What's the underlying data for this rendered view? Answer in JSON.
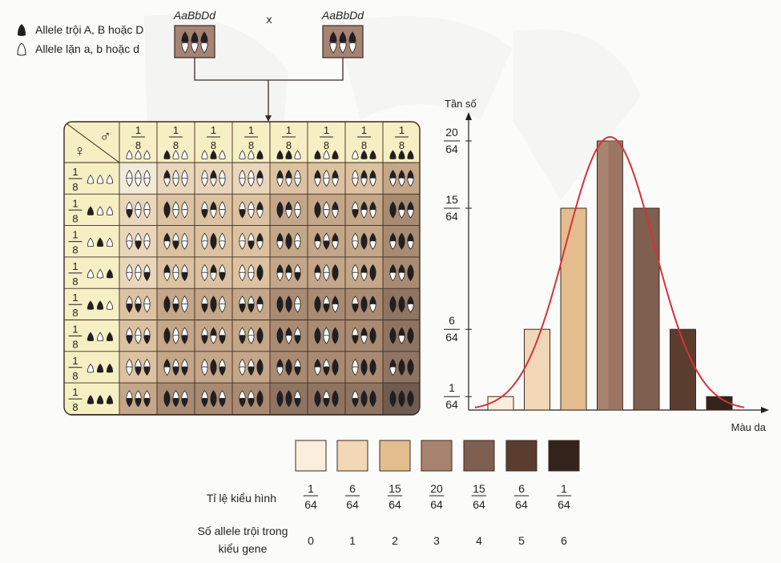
{
  "legend": {
    "dominant": "Allele trội A, B hoặc D",
    "recessive": "Allele lặn a, b hoặc d"
  },
  "cross": {
    "parent1": "AaBbDd",
    "operator": "x",
    "parent2": "AaBbDd"
  },
  "punnett": {
    "female_symbol": "♀",
    "male_symbol": "♂",
    "fraction_num": "1",
    "fraction_den": "8",
    "gamete_codes": [
      "000",
      "100",
      "010",
      "001",
      "110",
      "101",
      "011",
      "111"
    ],
    "column_gametes": [
      "000",
      "100",
      "010",
      "001",
      "110",
      "101",
      "011",
      "111"
    ],
    "row_gametes": [
      "000",
      "100",
      "010",
      "001",
      "110",
      "101",
      "011",
      "111"
    ]
  },
  "chart_data": {
    "type": "bar",
    "ylabel": "Tần số",
    "xlabel": "Màu da",
    "y_ticks": [
      {
        "num": "1",
        "den": "64",
        "value": 1
      },
      {
        "num": "6",
        "den": "64",
        "value": 6
      },
      {
        "num": "15",
        "den": "64",
        "value": 15
      },
      {
        "num": "20",
        "den": "64",
        "value": 20
      }
    ],
    "categories": [
      "0",
      "1",
      "2",
      "3",
      "4",
      "5",
      "6"
    ],
    "values": [
      1,
      6,
      15,
      20,
      15,
      6,
      1
    ],
    "bar_colors": [
      "#fbeedc",
      "#f2d7b6",
      "#e3bd8e",
      "#a88370",
      "#7f5f4f",
      "#5a3d2e",
      "#33231a"
    ],
    "curve_color": "#d6323a",
    "ylim": [
      0,
      21
    ]
  },
  "summary": {
    "ratio_label": "Tỉ lệ kiểu hình",
    "allele_label_line1": "Số allele trội trong",
    "allele_label_line2": "kiểu gene",
    "swatch_colors": [
      "#fbeedc",
      "#f2d7b6",
      "#e3bd8e",
      "#a88370",
      "#7f5f4f",
      "#5a3d2e",
      "#33231a"
    ],
    "ratios": [
      {
        "num": "1",
        "den": "64"
      },
      {
        "num": "6",
        "den": "64"
      },
      {
        "num": "15",
        "den": "64"
      },
      {
        "num": "20",
        "den": "64"
      },
      {
        "num": "15",
        "den": "64"
      },
      {
        "num": "6",
        "den": "64"
      },
      {
        "num": "1",
        "den": "64"
      }
    ],
    "allele_counts": [
      "0",
      "1",
      "2",
      "3",
      "4",
      "5",
      "6"
    ]
  },
  "cell_shades": [
    "#f3ead9",
    "#ead7bb",
    "#dcc2a0",
    "#c4a688",
    "#a88b72",
    "#8f7462",
    "#6f5b50"
  ]
}
